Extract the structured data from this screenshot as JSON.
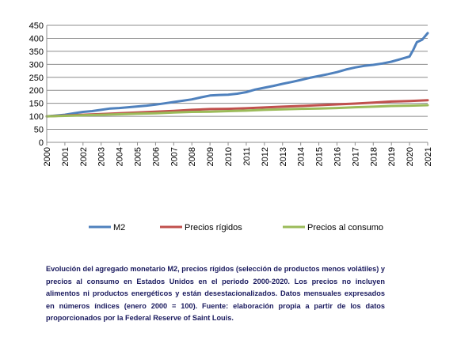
{
  "chart_data": {
    "type": "line",
    "title": "",
    "xlabel": "",
    "ylabel": "",
    "ylim": [
      0,
      450
    ],
    "yticks": [
      0,
      50,
      100,
      150,
      200,
      250,
      300,
      350,
      400,
      450
    ],
    "xlim": [
      2000,
      2021
    ],
    "xticks": [
      "2000",
      "2001",
      "2002",
      "2003",
      "2004",
      "2005",
      "2006",
      "2007",
      "2008",
      "2009",
      "2010",
      "2011",
      "2012",
      "2013",
      "2014",
      "2015",
      "2016",
      "2017",
      "2018",
      "2019",
      "2020",
      "2021"
    ],
    "grid": "horizontal",
    "legend_position": "bottom",
    "series": [
      {
        "name": "M2",
        "color": "#4f81bd",
        "points": [
          [
            2000.0,
            100
          ],
          [
            2000.5,
            103
          ],
          [
            2001.0,
            106
          ],
          [
            2001.5,
            112
          ],
          [
            2002.0,
            117
          ],
          [
            2002.5,
            120
          ],
          [
            2003.0,
            125
          ],
          [
            2003.5,
            130
          ],
          [
            2004.0,
            132
          ],
          [
            2004.5,
            135
          ],
          [
            2005.0,
            138
          ],
          [
            2005.5,
            141
          ],
          [
            2006.0,
            145
          ],
          [
            2006.5,
            150
          ],
          [
            2007.0,
            155
          ],
          [
            2007.5,
            160
          ],
          [
            2008.0,
            165
          ],
          [
            2008.5,
            173
          ],
          [
            2009.0,
            180
          ],
          [
            2009.5,
            182
          ],
          [
            2010.0,
            183
          ],
          [
            2010.5,
            187
          ],
          [
            2011.0,
            193
          ],
          [
            2011.5,
            203
          ],
          [
            2012.0,
            210
          ],
          [
            2012.5,
            217
          ],
          [
            2013.0,
            225
          ],
          [
            2013.5,
            232
          ],
          [
            2014.0,
            240
          ],
          [
            2014.5,
            248
          ],
          [
            2015.0,
            255
          ],
          [
            2015.5,
            262
          ],
          [
            2016.0,
            270
          ],
          [
            2016.5,
            280
          ],
          [
            2017.0,
            288
          ],
          [
            2017.5,
            294
          ],
          [
            2018.0,
            298
          ],
          [
            2018.5,
            303
          ],
          [
            2019.0,
            310
          ],
          [
            2019.5,
            320
          ],
          [
            2020.0,
            330
          ],
          [
            2020.2,
            355
          ],
          [
            2020.4,
            385
          ],
          [
            2020.7,
            395
          ],
          [
            2021.0,
            420
          ]
        ]
      },
      {
        "name": "Precios rígidos",
        "color": "#c0504d",
        "points": [
          [
            2000.0,
            100
          ],
          [
            2001.0,
            103
          ],
          [
            2002.0,
            106
          ],
          [
            2003.0,
            109
          ],
          [
            2004.0,
            112
          ],
          [
            2005.0,
            115
          ],
          [
            2006.0,
            118
          ],
          [
            2007.0,
            121
          ],
          [
            2008.0,
            125
          ],
          [
            2009.0,
            128
          ],
          [
            2010.0,
            129
          ],
          [
            2011.0,
            131
          ],
          [
            2012.0,
            134
          ],
          [
            2013.0,
            137
          ],
          [
            2014.0,
            140
          ],
          [
            2015.0,
            143
          ],
          [
            2016.0,
            146
          ],
          [
            2017.0,
            149
          ],
          [
            2018.0,
            153
          ],
          [
            2019.0,
            157
          ],
          [
            2020.0,
            159
          ],
          [
            2021.0,
            162
          ]
        ]
      },
      {
        "name": "Precios al consumo",
        "color": "#9bbb59",
        "points": [
          [
            2000.0,
            100
          ],
          [
            2001.0,
            102
          ],
          [
            2002.0,
            104
          ],
          [
            2003.0,
            106
          ],
          [
            2004.0,
            108
          ],
          [
            2005.0,
            110
          ],
          [
            2006.0,
            112
          ],
          [
            2007.0,
            115
          ],
          [
            2008.0,
            117
          ],
          [
            2009.0,
            118
          ],
          [
            2010.0,
            120
          ],
          [
            2011.0,
            122
          ],
          [
            2012.0,
            125
          ],
          [
            2013.0,
            127
          ],
          [
            2014.0,
            129
          ],
          [
            2015.0,
            130
          ],
          [
            2016.0,
            132
          ],
          [
            2017.0,
            135
          ],
          [
            2018.0,
            137
          ],
          [
            2019.0,
            140
          ],
          [
            2020.0,
            141
          ],
          [
            2021.0,
            143
          ]
        ]
      }
    ]
  },
  "legend": {
    "m2": "M2",
    "rigidos": "Precios rígidos",
    "consumo": "Precios al consumo"
  },
  "caption": "Evolución del agregado monetario M2, precios rígidos (selección de productos menos volátiles) y precios al consumo en Estados Unidos en el periodo 2000-2020. Los precios no incluyen alimentos ni productos energéticos y están desestacionalizados. Datos mensuales expresados en números índices (enero 2000 = 100). Fuente: elaboración propia a partir de los datos proporcionados por la Federal Reserve of Saint Louis."
}
